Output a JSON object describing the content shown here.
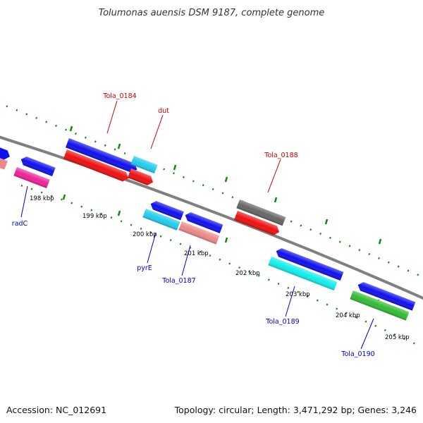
{
  "title": "Tolumonas auensis DSM 9187, complete genome",
  "footer": {
    "accession": "Accession: NC_012691",
    "summary": "Topology: circular; Length: 3,471,292 bp; Genes: 3,246"
  },
  "colors": {
    "blue": "#1010ee",
    "red": "#ee1010",
    "cyan": "#22ccee",
    "pink": "#ee8888",
    "magenta": "#ee2299",
    "gray": "#666666",
    "green": "#33bb33",
    "backbone": "#808080",
    "tick": "#118811",
    "label_red": "#cc0000",
    "label_blue": "#0000cc"
  },
  "kbp_labels": [
    "198 kbp",
    "199 kbp",
    "200 kbp",
    "201 kbp",
    "202 kbp",
    "203 kbp",
    "204 kbp",
    "205 kbp"
  ],
  "gene_labels": {
    "tola_0184": "Tola_0184",
    "dut": "dut",
    "tola_0188": "Tola_0188",
    "radc": "radC",
    "pyre": "pyrE",
    "tola_0187": "Tola_0187",
    "tola_0189": "Tola_0189",
    "tola_0190": "Tola_0190"
  }
}
